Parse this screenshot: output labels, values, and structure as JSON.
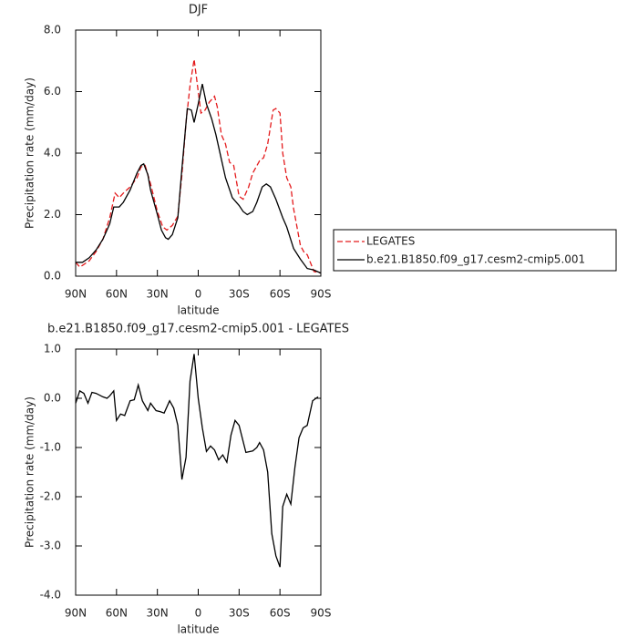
{
  "chart_data": [
    {
      "type": "line",
      "title": "DJF",
      "xlabel": "latitude",
      "ylabel": "Precipitation rate (mm/day)",
      "xlim": [
        90,
        -90
      ],
      "xticks": [
        {
          "value": 90,
          "label": "90N"
        },
        {
          "value": 60,
          "label": "60N"
        },
        {
          "value": 30,
          "label": "30N"
        },
        0,
        {
          "value": -30,
          "label": "30S"
        },
        {
          "value": -60,
          "label": "60S"
        },
        {
          "value": -90,
          "label": "90S"
        }
      ],
      "ylim": [
        0,
        8
      ],
      "yticks": [
        {
          "value": 0,
          "label": "0.0"
        },
        {
          "value": 2,
          "label": "2.0"
        },
        {
          "value": 4,
          "label": "4.0"
        },
        {
          "value": 6,
          "label": "6.0"
        },
        {
          "value": 8,
          "label": "8.0"
        }
      ],
      "legend": "right",
      "series": [
        {
          "name": "LEGATES",
          "color": "#e41a1c",
          "dash": true,
          "x": [
            90,
            87,
            85,
            80,
            75,
            70,
            65,
            61,
            58,
            55,
            50,
            45,
            42,
            39,
            35,
            30,
            26,
            23,
            19,
            15,
            12,
            9,
            6,
            3,
            0,
            -2,
            -5,
            -8,
            -12,
            -14,
            -17,
            -20,
            -23,
            -26,
            -30,
            -33,
            -37,
            -40,
            -45,
            -48,
            -51,
            -55,
            -57,
            -60,
            -62,
            -65,
            -68,
            -70,
            -75,
            -78,
            -80,
            -85,
            -90
          ],
          "values": [
            0.45,
            0.3,
            0.35,
            0.5,
            0.8,
            1.2,
            1.9,
            2.7,
            2.55,
            2.7,
            2.9,
            3.2,
            3.55,
            3.6,
            3.0,
            2.1,
            1.6,
            1.5,
            1.65,
            1.95,
            3.3,
            5.0,
            6.2,
            7.05,
            6.0,
            5.3,
            5.4,
            5.65,
            5.85,
            5.5,
            4.6,
            4.3,
            3.7,
            3.6,
            2.6,
            2.5,
            2.9,
            3.35,
            3.75,
            3.85,
            4.3,
            5.4,
            5.45,
            5.3,
            4.0,
            3.2,
            2.9,
            2.2,
            1.0,
            0.75,
            0.7,
            0.15,
            0.1
          ]
        },
        {
          "name": "b.e21.B1850.f09_g17.cesm2-cmip5.001",
          "color": "#000000",
          "dash": false,
          "x": [
            90,
            85,
            80,
            75,
            70,
            65,
            62,
            58,
            55,
            50,
            45,
            42,
            40,
            37,
            35,
            30,
            27,
            24,
            22,
            19,
            15,
            12,
            8,
            5,
            3,
            0,
            -3,
            -6,
            -10,
            -13,
            -17,
            -20,
            -25,
            -30,
            -33,
            -36,
            -40,
            -43,
            -47,
            -50,
            -53,
            -57,
            -62,
            -65,
            -70,
            -75,
            -80,
            -85,
            -90
          ],
          "values": [
            0.45,
            0.45,
            0.6,
            0.85,
            1.2,
            1.7,
            2.25,
            2.25,
            2.4,
            2.8,
            3.35,
            3.6,
            3.65,
            3.3,
            2.8,
            2.0,
            1.5,
            1.25,
            1.2,
            1.35,
            1.9,
            3.5,
            5.45,
            5.4,
            5.0,
            5.6,
            6.25,
            5.6,
            5.1,
            4.6,
            3.8,
            3.2,
            2.55,
            2.3,
            2.1,
            2.0,
            2.1,
            2.4,
            2.9,
            3.0,
            2.9,
            2.5,
            1.9,
            1.6,
            0.9,
            0.55,
            0.25,
            0.2,
            0.1
          ]
        }
      ]
    },
    {
      "type": "line",
      "title": "b.e21.B1850.f09_g17.cesm2-cmip5.001 - LEGATES",
      "xlabel": "latitude",
      "ylabel": "Precipitation rate (mm/day)",
      "xlim": [
        90,
        -90
      ],
      "xticks": [
        {
          "value": 90,
          "label": "90N"
        },
        {
          "value": 60,
          "label": "60N"
        },
        {
          "value": 30,
          "label": "30N"
        },
        0,
        {
          "value": -30,
          "label": "30S"
        },
        {
          "value": -60,
          "label": "60S"
        },
        {
          "value": -90,
          "label": "90S"
        }
      ],
      "ylim": [
        -4,
        1
      ],
      "yticks": [
        {
          "value": -4,
          "label": "-4.0"
        },
        {
          "value": -3,
          "label": "-3.0"
        },
        {
          "value": -2,
          "label": "-2.0"
        },
        {
          "value": -1,
          "label": "-1.0"
        },
        {
          "value": 0,
          "label": "0.0"
        },
        {
          "value": 1,
          "label": "1.0"
        }
      ],
      "series": [
        {
          "color": "#000000",
          "dash": false,
          "x": [
            90,
            87,
            84,
            81,
            78,
            75,
            70,
            67,
            65,
            62,
            60,
            57,
            54,
            50,
            47,
            44,
            41,
            37,
            35,
            31,
            28,
            25,
            21,
            18,
            15,
            12,
            9,
            6,
            3,
            0,
            -3,
            -6,
            -9,
            -12,
            -15,
            -18,
            -21,
            -24,
            -27,
            -30,
            -35,
            -40,
            -43,
            -45,
            -48,
            -51,
            -54,
            -57,
            -60,
            -62,
            -65,
            -68,
            -71,
            -74,
            -77,
            -80,
            -84,
            -88
          ],
          "values": [
            -0.1,
            0.15,
            0.1,
            -0.1,
            0.12,
            0.1,
            0.03,
            0.0,
            0.05,
            0.15,
            -0.45,
            -0.32,
            -0.35,
            -0.05,
            -0.03,
            0.27,
            -0.05,
            -0.25,
            -0.1,
            -0.25,
            -0.27,
            -0.3,
            -0.05,
            -0.2,
            -0.55,
            -1.65,
            -1.2,
            0.35,
            0.9,
            0.0,
            -0.6,
            -1.08,
            -0.97,
            -1.05,
            -1.25,
            -1.15,
            -1.3,
            -0.75,
            -0.45,
            -0.55,
            -1.1,
            -1.07,
            -1.0,
            -0.9,
            -1.05,
            -1.5,
            -2.75,
            -3.2,
            -3.43,
            -2.2,
            -1.95,
            -2.15,
            -1.4,
            -0.8,
            -0.6,
            -0.55,
            -0.05,
            0.03
          ]
        }
      ]
    }
  ]
}
